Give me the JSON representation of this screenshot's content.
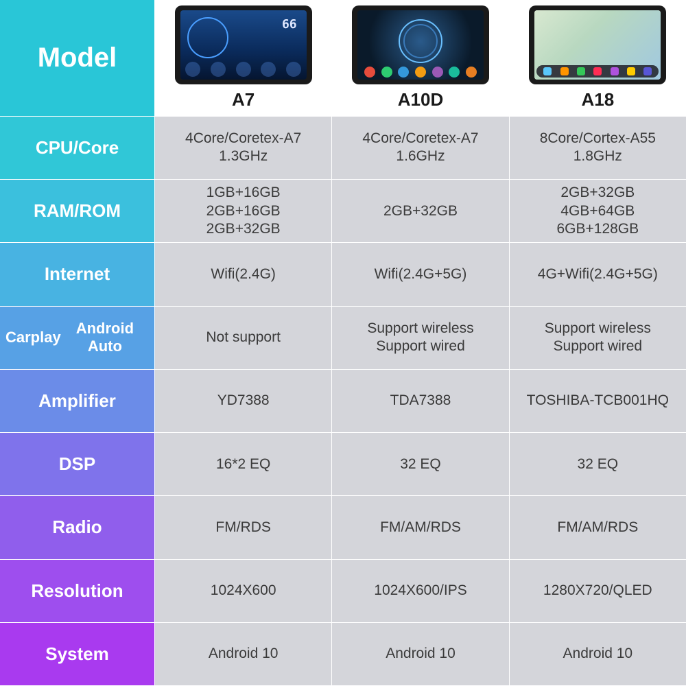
{
  "labels": {
    "model": "Model",
    "cpu": "CPU/Core",
    "ram": "RAM/ROM",
    "internet": "Internet",
    "carplay": "Carplay\nAndroid Auto",
    "amplifier": "Amplifier",
    "dsp": "DSP",
    "radio": "Radio",
    "resolution": "Resolution",
    "system": "System"
  },
  "label_colors": {
    "model": "#29c6d7",
    "cpu": "#30c7d7",
    "ram": "#3bc0dd",
    "internet": "#48b3e2",
    "carplay": "#57a1e5",
    "amplifier": "#6b8ce8",
    "dsp": "#7f73eb",
    "radio": "#905eec",
    "resolution": "#9e4eee",
    "system": "#a93aef"
  },
  "columns": {
    "a7": {
      "name": "A7"
    },
    "a10d": {
      "name": "A10D"
    },
    "a18": {
      "name": "A18"
    }
  },
  "rows": {
    "cpu": {
      "a7": "4Core/Coretex-A7\n1.3GHz",
      "a10d": "4Core/Coretex-A7\n1.6GHz",
      "a18": "8Core/Cortex-A55\n1.8GHz"
    },
    "ram": {
      "a7": "1GB+16GB\n2GB+16GB\n2GB+32GB",
      "a10d": "2GB+32GB",
      "a18": "2GB+32GB\n4GB+64GB\n6GB+128GB"
    },
    "internet": {
      "a7": "Wifi(2.4G)",
      "a10d": "Wifi(2.4G+5G)",
      "a18": "4G+Wifi(2.4G+5G)"
    },
    "carplay": {
      "a7": "Not support",
      "a10d": "Support wireless\nSupport wired",
      "a18": "Support wireless\nSupport wired"
    },
    "amplifier": {
      "a7": "YD7388",
      "a10d": "TDA7388",
      "a18": "TOSHIBA-TCB001HQ"
    },
    "dsp": {
      "a7": "16*2 EQ",
      "a10d": "32 EQ",
      "a18": "32 EQ"
    },
    "radio": {
      "a7": "FM/RDS",
      "a10d": "FM/AM/RDS",
      "a18": "FM/AM/RDS"
    },
    "resolution": {
      "a7": "1024X600",
      "a10d": "1024X600/IPS",
      "a18": "1280X720/QLED"
    },
    "system": {
      "a7": "Android 10",
      "a10d": "Android 10",
      "a18": "Android 10"
    }
  },
  "styles": {
    "data_bg": "#d4d5da",
    "data_fg": "#3a3a3a",
    "header_bg": "#ffffff"
  }
}
